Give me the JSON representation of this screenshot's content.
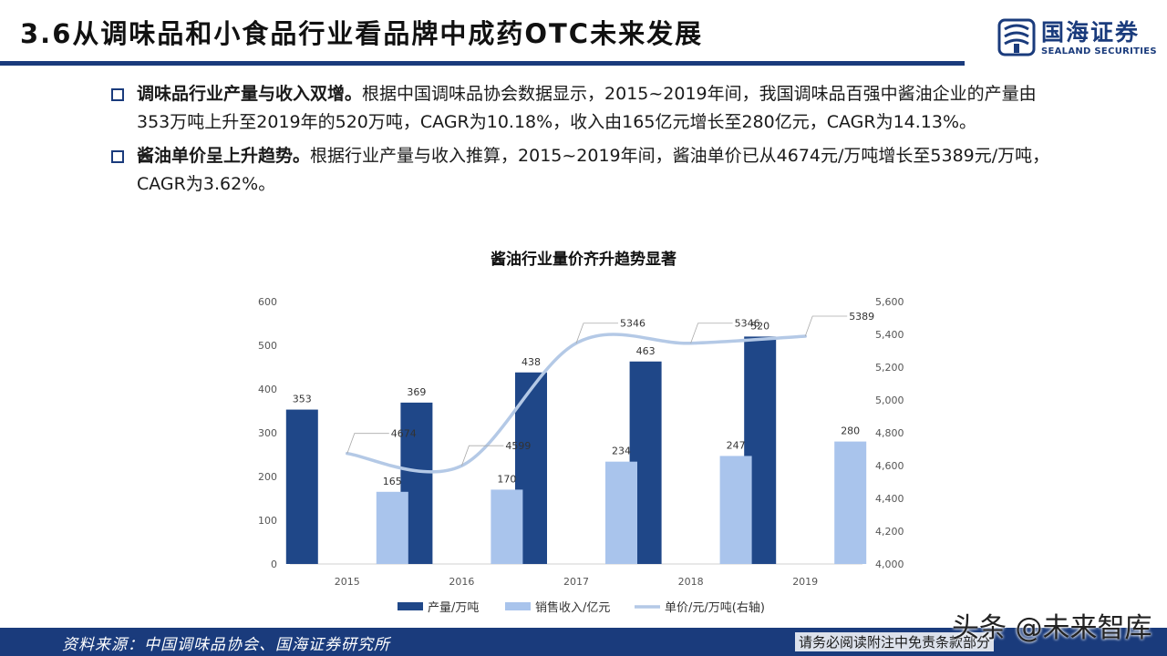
{
  "header": {
    "title": "3.6从调味品和小食品行业看品牌中成药OTC未来发展",
    "logo_cn": "国海证券",
    "logo_en": "SEALAND SECURITIES"
  },
  "bullets": [
    {
      "lead": "调味品行业产量与收入双增。",
      "text": "根据中国调味品协会数据显示，2015~2019年间，我国调味品百强中酱油企业的产量由353万吨上升至2019年的520万吨，CAGR为10.18%，收入由165亿元增长至280亿元，CAGR为14.13%。"
    },
    {
      "lead": "酱油单价呈上升趋势。",
      "text": "根据行业产量与收入推算，2015~2019年间，酱油单价已从4674元/万吨增长至5389元/万吨，CAGR为3.62%。"
    }
  ],
  "chart_data": {
    "type": "bar",
    "title": "酱油行业量价齐升趋势显著",
    "categories": [
      "2015",
      "2016",
      "2017",
      "2018",
      "2019"
    ],
    "series": [
      {
        "name": "产量/万吨",
        "type": "bar",
        "axis": "left",
        "color": "#1f4788",
        "values": [
          353,
          369,
          438,
          463,
          520
        ]
      },
      {
        "name": "销售收入/亿元",
        "type": "bar",
        "axis": "left",
        "color": "#a9c4ec",
        "values": [
          165,
          170,
          234,
          247,
          280
        ]
      },
      {
        "name": "单价/元/万吨(右轴)",
        "type": "line",
        "smooth": true,
        "axis": "right",
        "color": "#b4c9e6",
        "values": [
          4674,
          4599,
          5346,
          5346,
          5389
        ]
      }
    ],
    "ylim_left": [
      0,
      600
    ],
    "ylim_right": [
      4000,
      5600
    ],
    "yticks_left": [
      "0",
      "100",
      "200",
      "300",
      "400",
      "500",
      "600"
    ],
    "yticks_right": [
      "4,000",
      "4,200",
      "4,400",
      "4,600",
      "4,800",
      "5,000",
      "5,200",
      "5,400",
      "5,600"
    ],
    "legend_position": "bottom",
    "grid": false
  },
  "footer": {
    "source": "资料来源：中国调味品协会、国海证券研究所",
    "disclaimer": "请务必阅读附注中免责条款部分",
    "watermark": "头条 @未来智库"
  }
}
